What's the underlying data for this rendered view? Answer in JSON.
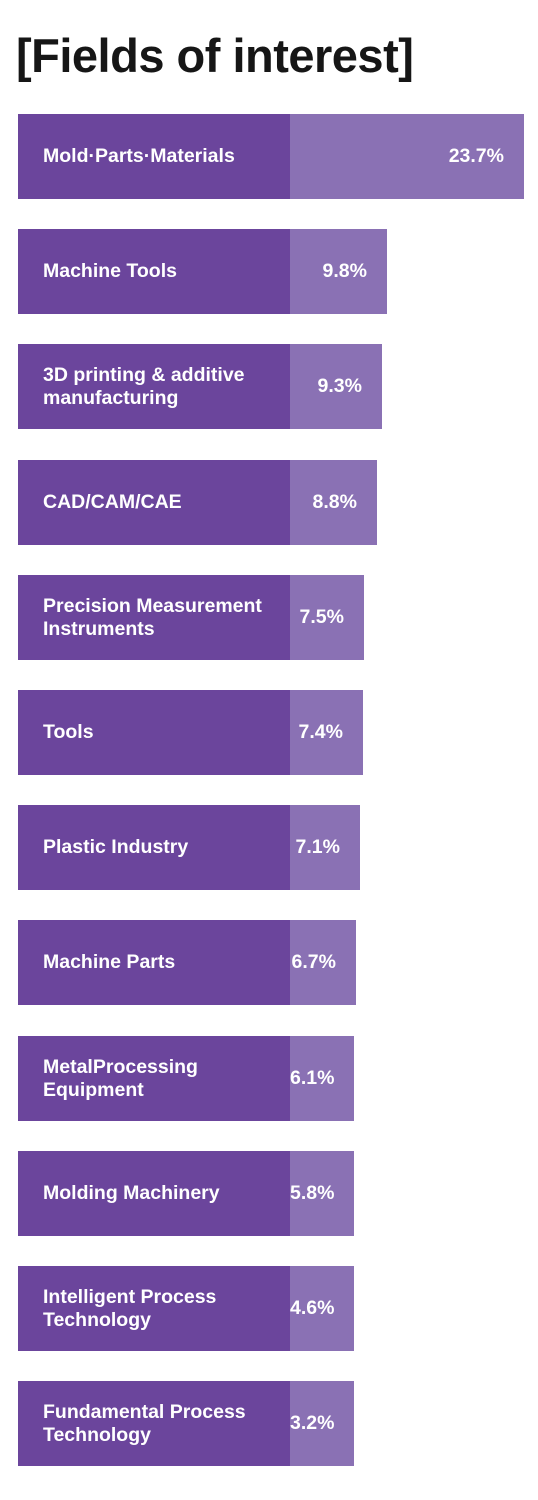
{
  "title": "[Fields of interest]",
  "colors": {
    "label_segment": "#6b459c",
    "value_segment": "#8a71b4",
    "title_text": "#161616",
    "bar_text": "#ffffff"
  },
  "chart_data": {
    "type": "bar",
    "orientation": "horizontal",
    "title": "[Fields of interest]",
    "xlabel": "",
    "ylabel": "",
    "unit": "%",
    "categories": [
      "Mold·Parts·Materials",
      "Machine Tools",
      "3D printing & additive\nmanufacturing",
      "CAD/CAM/CAE",
      "Precision Measurement\nInstruments",
      "Tools",
      "Plastic Industry",
      "Machine Parts",
      "MetalProcessing\nEquipment",
      "Molding Machinery",
      "Intelligent Process\nTechnology",
      "Fundamental Process\nTechnology"
    ],
    "values": [
      23.7,
      9.8,
      9.3,
      8.8,
      7.5,
      7.4,
      7.1,
      6.7,
      6.1,
      5.8,
      4.6,
      3.2
    ],
    "value_labels": [
      "23.7%",
      "9.8%",
      "9.3%",
      "8.8%",
      "7.5%",
      "7.4%",
      "7.1%",
      "6.7%",
      "6.1%",
      "5.8%",
      "4.6%",
      "3.2%"
    ]
  }
}
